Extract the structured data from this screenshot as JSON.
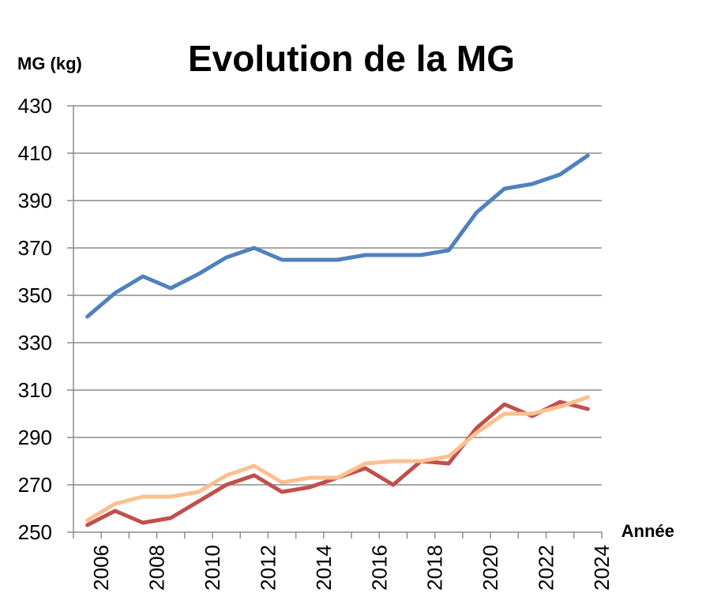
{
  "chart_data": {
    "type": "line",
    "title": "Evolution de la MG",
    "ylabel": "MG (kg)",
    "xlabel": "Année",
    "ylim": [
      250,
      430
    ],
    "yticks": [
      "250",
      "270",
      "290",
      "310",
      "330",
      "350",
      "370",
      "390",
      "410",
      "430"
    ],
    "xticks": [
      "2006",
      "2008",
      "2010",
      "2012",
      "2014",
      "2016",
      "2018",
      "2020",
      "2022",
      "2024"
    ],
    "grid": true,
    "x": [
      2005.5,
      2006.5,
      2007.5,
      2008.5,
      2009.5,
      2010.5,
      2011.5,
      2012.5,
      2013.5,
      2014.5,
      2015.5,
      2016.5,
      2017.5,
      2018.5,
      2019.5,
      2020.5,
      2021.5,
      2022.5,
      2023.5
    ],
    "series": [
      {
        "color": "#4f81bd",
        "values": [
          341,
          351,
          358,
          353,
          359,
          366,
          370,
          365,
          365,
          365,
          367,
          367,
          367,
          369,
          385,
          395,
          397,
          401,
          409
        ]
      },
      {
        "color": "#c0504d",
        "values": [
          253,
          259,
          254,
          256,
          263,
          270,
          274,
          267,
          269,
          273,
          277,
          270,
          280,
          279,
          294,
          304,
          299,
          305,
          302
        ]
      },
      {
        "color": "#fac090",
        "values": [
          255,
          262,
          265,
          265,
          267,
          274,
          278,
          271,
          273,
          273,
          279,
          280,
          280,
          282,
          292,
          300,
          300,
          303,
          307
        ]
      }
    ]
  }
}
